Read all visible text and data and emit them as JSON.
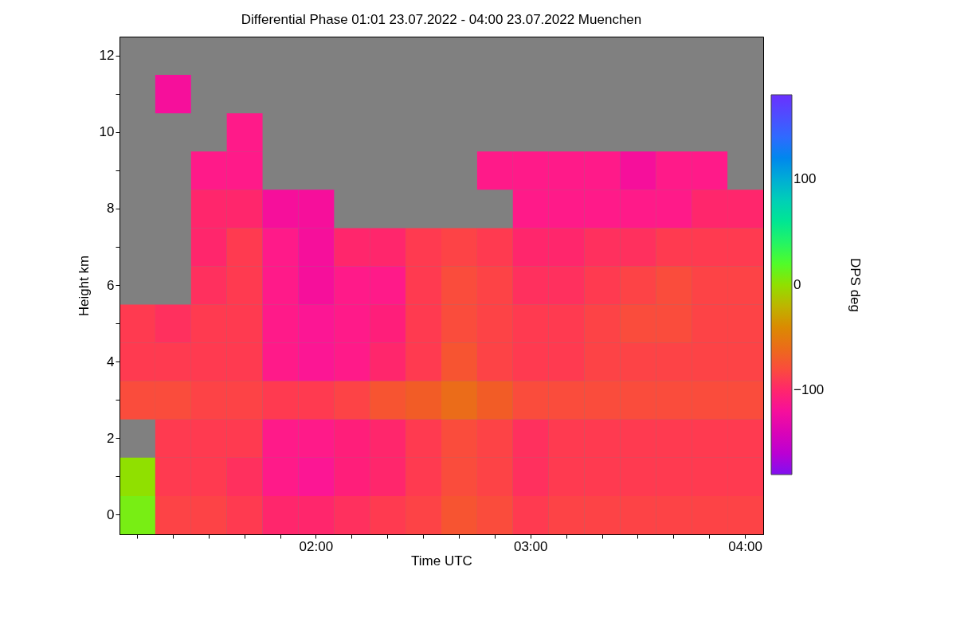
{
  "chart_data": {
    "type": "heatmap",
    "title": "Differential Phase   01:01 23.07.2022 - 04:00 23.07.2022 Muenchen",
    "xlabel": "Time UTC",
    "ylabel": "Height km",
    "clabel": "DPS deg",
    "categories": [
      null,
      null,
      null,
      null,
      null,
      "02:00",
      null,
      null,
      null,
      null,
      null,
      "03:00",
      null,
      null,
      null,
      null,
      null,
      "04:00"
    ],
    "y_categories": [
      "12",
      null,
      "10",
      null,
      "8",
      null,
      "6",
      null,
      "4",
      null,
      "2",
      null,
      "0"
    ],
    "cells": [
      [
        null,
        null,
        null,
        null,
        null,
        null,
        null,
        null,
        null,
        null,
        null,
        null,
        null,
        null,
        null,
        null,
        null,
        null
      ],
      [
        null,
        -120,
        null,
        null,
        null,
        null,
        null,
        null,
        null,
        null,
        null,
        null,
        null,
        null,
        null,
        null,
        null,
        null
      ],
      [
        null,
        null,
        null,
        -110,
        null,
        null,
        null,
        null,
        null,
        null,
        null,
        null,
        null,
        null,
        null,
        null,
        null,
        null
      ],
      [
        null,
        null,
        -110,
        -110,
        null,
        null,
        null,
        null,
        null,
        null,
        -110,
        -110,
        -110,
        -110,
        -120,
        -110,
        -110,
        null
      ],
      [
        null,
        null,
        -100,
        -100,
        -120,
        -120,
        null,
        null,
        null,
        null,
        null,
        -110,
        -110,
        -110,
        -110,
        -110,
        -100,
        -100
      ],
      [
        null,
        null,
        -100,
        -90,
        -110,
        -120,
        -100,
        -100,
        -90,
        -85,
        -90,
        -100,
        -100,
        -95,
        -95,
        -90,
        -90,
        -90
      ],
      [
        null,
        null,
        -95,
        -90,
        -110,
        -120,
        -110,
        -110,
        -90,
        -80,
        -85,
        -95,
        -95,
        -90,
        -85,
        -80,
        -85,
        -85
      ],
      [
        -90,
        -95,
        -90,
        -90,
        -110,
        -115,
        -110,
        -105,
        -90,
        -80,
        -85,
        -90,
        -90,
        -85,
        -80,
        -80,
        -85,
        -85
      ],
      [
        -90,
        -90,
        -90,
        -90,
        -110,
        -115,
        -110,
        -100,
        -90,
        -75,
        -85,
        -90,
        -90,
        -85,
        -85,
        -85,
        -85,
        -85
      ],
      [
        -80,
        -80,
        -85,
        -85,
        -90,
        -90,
        -85,
        -75,
        -70,
        -60,
        -70,
        -80,
        -80,
        -80,
        -80,
        -80,
        -80,
        -80
      ],
      [
        null,
        -90,
        -90,
        -90,
        -110,
        -110,
        -105,
        -100,
        -90,
        -80,
        -85,
        -95,
        -90,
        -90,
        -90,
        -90,
        -90,
        -90
      ],
      [
        0,
        -90,
        -90,
        -95,
        -110,
        -115,
        -105,
        -100,
        -90,
        -80,
        -85,
        -95,
        -90,
        -90,
        -90,
        -90,
        -90,
        -90
      ],
      [
        10,
        -85,
        -85,
        -90,
        -100,
        -100,
        -95,
        -90,
        -85,
        -75,
        -80,
        -90,
        -85,
        -85,
        -85,
        -85,
        -85,
        -85
      ]
    ],
    "clim": [
      -180,
      180
    ],
    "cticks": [
      -100,
      0,
      100
    ]
  }
}
